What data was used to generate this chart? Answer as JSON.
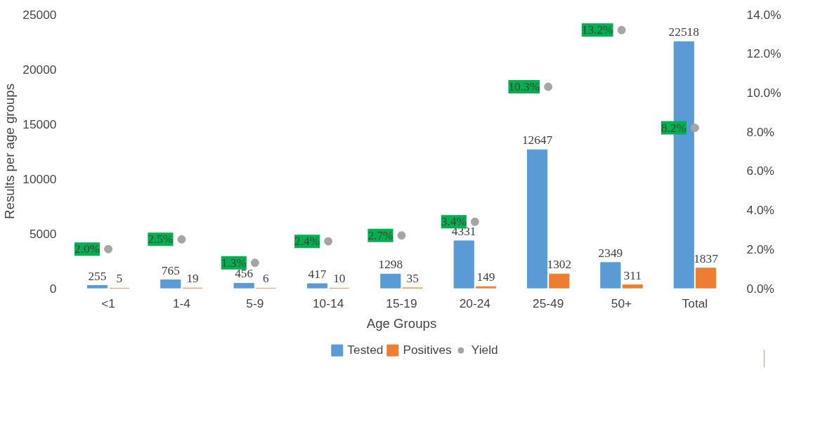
{
  "chart_data": {
    "type": "bar",
    "xlabel": "Age Groups",
    "ylabel": "Results per age groups",
    "categories": [
      "<1",
      "1-4",
      "5-9",
      "10-14",
      "15-19",
      "20-24",
      "25-49",
      "50+",
      "Total"
    ],
    "series": [
      {
        "name": "Tested",
        "color": "#5b9bd5",
        "values": [
          255,
          765,
          456,
          417,
          1298,
          4331,
          12647,
          2349,
          22518
        ],
        "value_labels": [
          "255",
          "765",
          "456",
          "417",
          "1298",
          "4331",
          "12647",
          "2349",
          "22518"
        ]
      },
      {
        "name": "Positives",
        "color": "#ed7d31",
        "values": [
          5,
          19,
          6,
          10,
          35,
          149,
          1302,
          311,
          1837
        ],
        "value_labels": [
          "5",
          "19",
          "6",
          "10",
          "35",
          "149",
          "1302",
          "311",
          "1837"
        ]
      },
      {
        "name": "Yield",
        "type": "scatter",
        "axis": "y2",
        "color": "#a5a5a5",
        "marker": "circle",
        "values": [
          2.0,
          2.5,
          1.3,
          2.4,
          2.7,
          3.4,
          10.3,
          13.2,
          8.2
        ],
        "value_labels": [
          "2.0%",
          "2.5%",
          "1.3%",
          "2.4%",
          "2.7%",
          "3.4%",
          "10.3%",
          "13.2%",
          "8.2%"
        ]
      }
    ],
    "ylim": [
      0,
      25000
    ],
    "yticks": [
      0,
      5000,
      10000,
      15000,
      20000,
      25000
    ],
    "y2lim": [
      0,
      14
    ],
    "y2ticks": [
      {
        "value": 0,
        "label": "0.0%"
      },
      {
        "value": 2,
        "label": "2.0%"
      },
      {
        "value": 4,
        "label": "4.0%"
      },
      {
        "value": 6,
        "label": "6.0%"
      },
      {
        "value": 8,
        "label": "8.0%"
      },
      {
        "value": 10,
        "label": "10.0%"
      },
      {
        "value": 12,
        "label": "12.0%"
      },
      {
        "value": 14,
        "label": "14.0%"
      }
    ],
    "grid": false,
    "legend": "bottom"
  }
}
